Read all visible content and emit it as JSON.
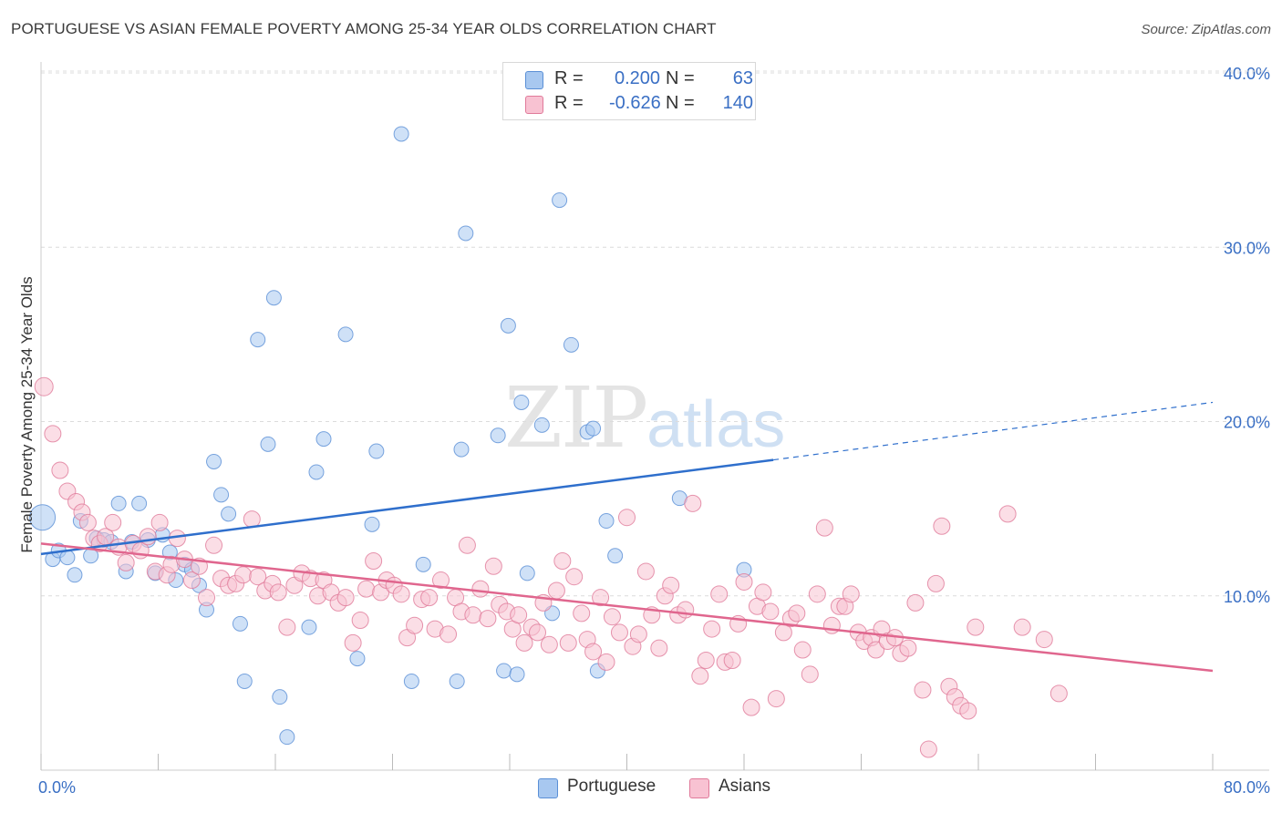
{
  "header": {
    "title": "PORTUGUESE VS ASIAN FEMALE POVERTY AMONG 25-34 YEAR OLDS CORRELATION CHART",
    "source": "Source: ZipAtlas.com"
  },
  "watermark": {
    "zip": "ZIP",
    "atlas": "atlas"
  },
  "legend": {
    "rows": [
      {
        "r_label": "R =",
        "r_value": "0.200",
        "n_label": "N =",
        "n_value": "63",
        "color": "#a8c8f0",
        "border": "#5a8fd6"
      },
      {
        "r_label": "R =",
        "r_value": "-0.626",
        "n_label": "N =",
        "n_value": "140",
        "color": "#f8c2d2",
        "border": "#e07a9a"
      }
    ]
  },
  "bottom_legend": [
    {
      "label": "Portuguese",
      "color": "#a8c8f0",
      "border": "#5a8fd6"
    },
    {
      "label": "Asians",
      "color": "#f8c2d2",
      "border": "#e07a9a"
    }
  ],
  "chart_data": {
    "type": "scatter",
    "title": "PORTUGUESE VS ASIAN FEMALE POVERTY AMONG 25-34 YEAR OLDS CORRELATION CHART",
    "xlabel": "",
    "ylabel": "Female Poverty Among 25-34 Year Olds",
    "xlim": [
      0,
      80
    ],
    "ylim": [
      0,
      40
    ],
    "x_tick_labels": [
      "0.0%",
      "80.0%"
    ],
    "y_ticks": [
      10,
      20,
      30,
      40
    ],
    "y_tick_labels": [
      "10.0%",
      "20.0%",
      "30.0%",
      "40.0%"
    ],
    "grid": true,
    "series": [
      {
        "name": "Portuguese",
        "color": "#a8c8f0",
        "stroke": "#5a8fd6",
        "trend": {
          "x": [
            0,
            50
          ],
          "y": [
            12.4,
            17.8
          ],
          "dashed_to": [
            80,
            21.1
          ],
          "color": "#2f6fcc"
        },
        "points": [
          [
            0.1,
            14.5,
            14
          ],
          [
            0.8,
            12.1,
            8
          ],
          [
            1.2,
            12.6,
            8
          ],
          [
            1.8,
            12.2,
            8
          ],
          [
            2.3,
            11.2,
            8
          ],
          [
            2.7,
            14.3,
            8
          ],
          [
            3.4,
            12.3,
            8
          ],
          [
            3.8,
            13.3,
            8
          ],
          [
            4.3,
            13.2,
            8
          ],
          [
            4.8,
            13.1,
            8
          ],
          [
            5.3,
            15.3,
            8
          ],
          [
            5.8,
            11.4,
            8
          ],
          [
            6.2,
            13.1,
            8
          ],
          [
            6.7,
            15.3,
            8
          ],
          [
            7.3,
            13.2,
            8
          ],
          [
            7.8,
            11.3,
            8
          ],
          [
            8.3,
            13.5,
            8
          ],
          [
            8.8,
            12.5,
            8
          ],
          [
            9.2,
            10.9,
            8
          ],
          [
            9.8,
            11.8,
            8
          ],
          [
            10.3,
            11.5,
            8
          ],
          [
            10.8,
            10.6,
            8
          ],
          [
            11.3,
            9.2,
            8
          ],
          [
            11.8,
            17.7,
            8
          ],
          [
            12.3,
            15.8,
            8
          ],
          [
            12.8,
            14.7,
            8
          ],
          [
            13.6,
            8.4,
            8
          ],
          [
            13.9,
            5.1,
            8
          ],
          [
            14.8,
            24.7,
            8
          ],
          [
            15.5,
            18.7,
            8
          ],
          [
            15.9,
            27.1,
            8
          ],
          [
            16.3,
            4.2,
            8
          ],
          [
            16.8,
            1.9,
            8
          ],
          [
            18.3,
            8.2,
            8
          ],
          [
            18.8,
            17.1,
            8
          ],
          [
            19.3,
            19.0,
            8
          ],
          [
            20.8,
            25.0,
            8
          ],
          [
            21.6,
            6.4,
            8
          ],
          [
            22.6,
            14.1,
            8
          ],
          [
            22.9,
            18.3,
            8
          ],
          [
            24.6,
            36.5,
            8
          ],
          [
            25.3,
            5.1,
            8
          ],
          [
            26.1,
            11.8,
            8
          ],
          [
            28.4,
            5.1,
            8
          ],
          [
            28.7,
            18.4,
            8
          ],
          [
            29.0,
            30.8,
            8
          ],
          [
            31.2,
            19.2,
            8
          ],
          [
            31.6,
            5.7,
            8
          ],
          [
            31.9,
            25.5,
            8
          ],
          [
            32.5,
            5.5,
            8
          ],
          [
            32.8,
            21.1,
            8
          ],
          [
            33.2,
            11.3,
            8
          ],
          [
            34.2,
            19.8,
            8
          ],
          [
            34.9,
            9.0,
            8
          ],
          [
            35.4,
            32.7,
            8
          ],
          [
            36.2,
            24.4,
            8
          ],
          [
            37.3,
            19.4,
            8
          ],
          [
            37.7,
            19.6,
            8
          ],
          [
            38.0,
            5.7,
            8
          ],
          [
            38.6,
            14.3,
            8
          ],
          [
            39.2,
            12.3,
            8
          ],
          [
            43.6,
            15.6,
            8
          ],
          [
            48.0,
            11.5,
            8
          ]
        ]
      },
      {
        "name": "Asians",
        "color": "#f8c2d2",
        "stroke": "#e07a9a",
        "trend": {
          "x": [
            0,
            80
          ],
          "y": [
            13.0,
            5.7
          ],
          "color": "#e0668e"
        },
        "points": [
          [
            0.2,
            22.0,
            10
          ],
          [
            0.8,
            19.3,
            9
          ],
          [
            1.3,
            17.2,
            9
          ],
          [
            1.8,
            16.0,
            9
          ],
          [
            2.4,
            15.4,
            9
          ],
          [
            2.8,
            14.8,
            9
          ],
          [
            3.2,
            14.2,
            9
          ],
          [
            3.6,
            13.3,
            9
          ],
          [
            4.0,
            13.0,
            9
          ],
          [
            4.4,
            13.4,
            9
          ],
          [
            4.9,
            14.2,
            9
          ],
          [
            5.3,
            12.8,
            9
          ],
          [
            5.8,
            11.9,
            9
          ],
          [
            6.3,
            13.0,
            9
          ],
          [
            6.8,
            12.6,
            9
          ],
          [
            7.3,
            13.4,
            9
          ],
          [
            7.8,
            11.4,
            9
          ],
          [
            8.1,
            14.2,
            9
          ],
          [
            8.6,
            11.2,
            9
          ],
          [
            8.9,
            11.8,
            9
          ],
          [
            9.3,
            13.3,
            9
          ],
          [
            9.8,
            12.1,
            9
          ],
          [
            10.3,
            10.9,
            9
          ],
          [
            10.8,
            11.7,
            9
          ],
          [
            11.3,
            9.9,
            9
          ],
          [
            11.8,
            12.9,
            9
          ],
          [
            12.3,
            11.0,
            9
          ],
          [
            12.8,
            10.6,
            9
          ],
          [
            13.3,
            10.7,
            9
          ],
          [
            13.8,
            11.2,
            9
          ],
          [
            14.4,
            14.4,
            9
          ],
          [
            14.8,
            11.1,
            9
          ],
          [
            15.3,
            10.3,
            9
          ],
          [
            15.8,
            10.7,
            9
          ],
          [
            16.2,
            10.2,
            9
          ],
          [
            16.8,
            8.2,
            9
          ],
          [
            17.3,
            10.6,
            9
          ],
          [
            17.8,
            11.3,
            9
          ],
          [
            18.4,
            11.0,
            9
          ],
          [
            18.9,
            10.0,
            9
          ],
          [
            19.3,
            10.9,
            9
          ],
          [
            19.8,
            10.2,
            9
          ],
          [
            20.3,
            9.6,
            9
          ],
          [
            20.8,
            9.9,
            9
          ],
          [
            21.3,
            7.3,
            9
          ],
          [
            21.8,
            8.6,
            9
          ],
          [
            22.2,
            10.4,
            9
          ],
          [
            22.7,
            12.0,
            9
          ],
          [
            23.2,
            10.2,
            9
          ],
          [
            23.6,
            10.9,
            9
          ],
          [
            24.1,
            10.6,
            9
          ],
          [
            24.6,
            10.1,
            9
          ],
          [
            25.0,
            7.6,
            9
          ],
          [
            25.5,
            8.3,
            9
          ],
          [
            26.0,
            9.8,
            9
          ],
          [
            26.5,
            9.9,
            9
          ],
          [
            26.9,
            8.1,
            9
          ],
          [
            27.3,
            10.9,
            9
          ],
          [
            27.8,
            7.8,
            9
          ],
          [
            28.3,
            9.9,
            9
          ],
          [
            28.7,
            9.1,
            9
          ],
          [
            29.1,
            12.9,
            9
          ],
          [
            29.5,
            8.9,
            9
          ],
          [
            30.0,
            10.4,
            9
          ],
          [
            30.5,
            8.7,
            9
          ],
          [
            30.9,
            11.7,
            9
          ],
          [
            31.3,
            9.5,
            9
          ],
          [
            31.8,
            9.1,
            9
          ],
          [
            32.2,
            8.1,
            9
          ],
          [
            32.6,
            8.9,
            9
          ],
          [
            33.0,
            7.3,
            9
          ],
          [
            33.5,
            8.2,
            9
          ],
          [
            33.9,
            7.9,
            9
          ],
          [
            34.3,
            9.6,
            9
          ],
          [
            34.7,
            7.2,
            9
          ],
          [
            35.2,
            10.3,
            9
          ],
          [
            35.6,
            12.0,
            9
          ],
          [
            36.0,
            7.3,
            9
          ],
          [
            36.4,
            11.1,
            9
          ],
          [
            36.9,
            9.0,
            9
          ],
          [
            37.3,
            7.5,
            9
          ],
          [
            37.7,
            6.8,
            9
          ],
          [
            38.2,
            9.9,
            9
          ],
          [
            38.6,
            6.2,
            9
          ],
          [
            39.0,
            8.8,
            9
          ],
          [
            39.5,
            7.9,
            9
          ],
          [
            40.0,
            14.5,
            9
          ],
          [
            40.4,
            7.1,
            9
          ],
          [
            40.8,
            7.8,
            9
          ],
          [
            41.3,
            11.4,
            9
          ],
          [
            41.7,
            8.9,
            9
          ],
          [
            42.2,
            7.0,
            9
          ],
          [
            42.6,
            10.0,
            9
          ],
          [
            43.0,
            10.6,
            9
          ],
          [
            43.5,
            8.9,
            9
          ],
          [
            44.0,
            9.2,
            9
          ],
          [
            44.5,
            15.3,
            9
          ],
          [
            45.0,
            5.4,
            9
          ],
          [
            45.4,
            6.3,
            9
          ],
          [
            45.8,
            8.1,
            9
          ],
          [
            46.3,
            10.1,
            9
          ],
          [
            46.7,
            6.2,
            9
          ],
          [
            47.2,
            6.3,
            9
          ],
          [
            47.6,
            8.4,
            9
          ],
          [
            48.0,
            10.8,
            9
          ],
          [
            48.5,
            3.6,
            9
          ],
          [
            48.9,
            9.4,
            9
          ],
          [
            49.3,
            10.2,
            9
          ],
          [
            49.8,
            9.1,
            9
          ],
          [
            50.2,
            4.1,
            9
          ],
          [
            50.7,
            7.9,
            9
          ],
          [
            51.2,
            8.7,
            9
          ],
          [
            51.6,
            9.0,
            9
          ],
          [
            52.0,
            6.9,
            9
          ],
          [
            52.5,
            5.5,
            9
          ],
          [
            53.0,
            10.1,
            9
          ],
          [
            53.5,
            13.9,
            9
          ],
          [
            54.0,
            8.3,
            9
          ],
          [
            54.5,
            9.4,
            9
          ],
          [
            54.9,
            9.4,
            9
          ],
          [
            55.3,
            10.1,
            9
          ],
          [
            55.8,
            7.9,
            9
          ],
          [
            56.2,
            7.4,
            9
          ],
          [
            56.7,
            7.6,
            9
          ],
          [
            57.0,
            6.9,
            9
          ],
          [
            57.4,
            8.1,
            9
          ],
          [
            57.8,
            7.4,
            9
          ],
          [
            58.3,
            7.6,
            9
          ],
          [
            58.7,
            6.7,
            9
          ],
          [
            59.2,
            7.0,
            9
          ],
          [
            59.7,
            9.6,
            9
          ],
          [
            60.2,
            4.6,
            9
          ],
          [
            60.6,
            1.2,
            9
          ],
          [
            61.1,
            10.7,
            9
          ],
          [
            61.5,
            14.0,
            9
          ],
          [
            62.0,
            4.8,
            9
          ],
          [
            62.4,
            4.2,
            9
          ],
          [
            62.8,
            3.7,
            9
          ],
          [
            63.3,
            3.4,
            9
          ],
          [
            63.8,
            8.2,
            9
          ],
          [
            66.0,
            14.7,
            9
          ],
          [
            67.0,
            8.2,
            9
          ],
          [
            68.5,
            7.5,
            9
          ],
          [
            69.5,
            4.4,
            9
          ]
        ]
      }
    ]
  }
}
